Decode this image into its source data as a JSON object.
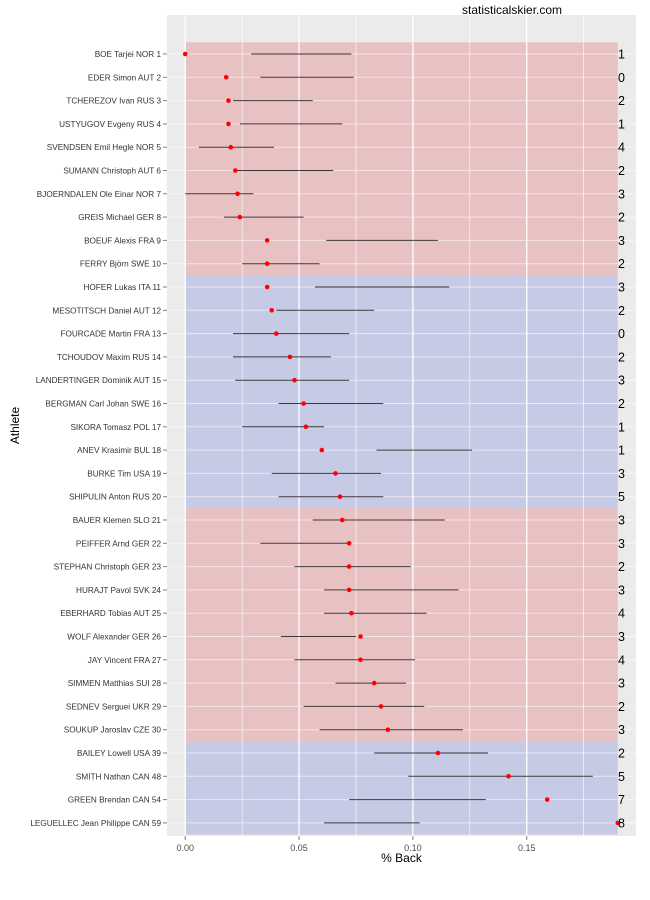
{
  "watermark": "statisticalskier.com",
  "chart_data": {
    "type": "scatter",
    "title": "",
    "xlabel": "% Back",
    "ylabel": "Athlete",
    "xlim": [
      -0.008,
      0.198
    ],
    "xticks": [
      0.0,
      0.05,
      0.1,
      0.15
    ],
    "xtick_labels": [
      "0.00",
      "0.05",
      "0.10",
      "0.15"
    ],
    "grid": true,
    "colors": {
      "panel": "#ebebeb",
      "grid": "#ffffff",
      "point": "#ff0000",
      "range_line": "#000000",
      "band_red": "#e8bcbf",
      "band_blue": "#c3c6e3"
    },
    "bands": [
      {
        "from_rank": 1,
        "to_rank": 10,
        "color": "red",
        "xmin": 0.0,
        "xmax": 0.19
      },
      {
        "from_rank": 11,
        "to_rank": 20,
        "color": "blue",
        "xmin": 0.0,
        "xmax": 0.19
      },
      {
        "from_rank": 21,
        "to_rank": 30,
        "color": "red",
        "xmin": 0.0,
        "xmax": 0.19
      },
      {
        "from_rank": 31,
        "to_rank": 34,
        "color": "blue",
        "xmin": 0.0,
        "xmax": 0.19
      }
    ],
    "athletes": [
      {
        "label": "BOE Tarjei NOR 1",
        "value": 0.0,
        "lo": 0.029,
        "hi": 0.073,
        "count": "1"
      },
      {
        "label": "EDER Simon AUT 2",
        "value": 0.018,
        "lo": 0.033,
        "hi": 0.074,
        "count": "0"
      },
      {
        "label": "TCHEREZOV Ivan RUS 3",
        "value": 0.019,
        "lo": 0.021,
        "hi": 0.056,
        "count": "2"
      },
      {
        "label": "USTYUGOV Evgeny RUS 4",
        "value": 0.019,
        "lo": 0.024,
        "hi": 0.069,
        "count": "1"
      },
      {
        "label": "SVENDSEN Emil Hegle NOR 5",
        "value": 0.02,
        "lo": 0.006,
        "hi": 0.039,
        "count": "4"
      },
      {
        "label": "SUMANN Christoph AUT 6",
        "value": 0.022,
        "lo": 0.022,
        "hi": 0.065,
        "count": "2"
      },
      {
        "label": "BJOERNDALEN Ole Einar NOR 7",
        "value": 0.023,
        "lo": 0.0,
        "hi": 0.03,
        "count": "3"
      },
      {
        "label": "GREIS Michael GER 8",
        "value": 0.024,
        "lo": 0.017,
        "hi": 0.052,
        "count": "2"
      },
      {
        "label": "BOEUF Alexis FRA 9",
        "value": 0.036,
        "lo": 0.062,
        "hi": 0.111,
        "count": "3"
      },
      {
        "label": "FERRY Björn SWE 10",
        "value": 0.036,
        "lo": 0.025,
        "hi": 0.059,
        "count": "2"
      },
      {
        "label": "HOFER Lukas ITA 11",
        "value": 0.036,
        "lo": 0.057,
        "hi": 0.116,
        "count": "3"
      },
      {
        "label": "MESOTITSCH Daniel AUT 12",
        "value": 0.038,
        "lo": 0.04,
        "hi": 0.083,
        "count": "2"
      },
      {
        "label": "FOURCADE Martin FRA 13",
        "value": 0.04,
        "lo": 0.021,
        "hi": 0.072,
        "count": "0"
      },
      {
        "label": "TCHOUDOV Maxim RUS 14",
        "value": 0.046,
        "lo": 0.021,
        "hi": 0.064,
        "count": "2"
      },
      {
        "label": "LANDERTINGER Dominik AUT 15",
        "value": 0.048,
        "lo": 0.022,
        "hi": 0.072,
        "count": "3"
      },
      {
        "label": "BERGMAN Carl Johan SWE 16",
        "value": 0.052,
        "lo": 0.041,
        "hi": 0.087,
        "count": "2"
      },
      {
        "label": "SIKORA Tomasz POL 17",
        "value": 0.053,
        "lo": 0.025,
        "hi": 0.061,
        "count": "1"
      },
      {
        "label": "ANEV Krasimir BUL 18",
        "value": 0.06,
        "lo": 0.084,
        "hi": 0.126,
        "count": "1"
      },
      {
        "label": "BURKE Tim USA 19",
        "value": 0.066,
        "lo": 0.038,
        "hi": 0.086,
        "count": "3"
      },
      {
        "label": "SHIPULIN Anton RUS 20",
        "value": 0.068,
        "lo": 0.041,
        "hi": 0.087,
        "count": "5"
      },
      {
        "label": "BAUER Klemen SLO 21",
        "value": 0.069,
        "lo": 0.056,
        "hi": 0.114,
        "count": "3"
      },
      {
        "label": "PEIFFER Arnd GER 22",
        "value": 0.072,
        "lo": 0.033,
        "hi": 0.073,
        "count": "3"
      },
      {
        "label": "STEPHAN Christoph GER 23",
        "value": 0.072,
        "lo": 0.048,
        "hi": 0.099,
        "count": "2"
      },
      {
        "label": "HURAJT Pavol SVK 24",
        "value": 0.072,
        "lo": 0.061,
        "hi": 0.12,
        "count": "3"
      },
      {
        "label": "EBERHARD Tobias AUT 25",
        "value": 0.073,
        "lo": 0.061,
        "hi": 0.106,
        "count": "4"
      },
      {
        "label": "WOLF Alexander GER 26",
        "value": 0.077,
        "lo": 0.042,
        "hi": 0.075,
        "count": "3"
      },
      {
        "label": "JAY Vincent FRA 27",
        "value": 0.077,
        "lo": 0.048,
        "hi": 0.101,
        "count": "4"
      },
      {
        "label": "SIMMEN Matthias SUI 28",
        "value": 0.083,
        "lo": 0.066,
        "hi": 0.097,
        "count": "3"
      },
      {
        "label": "SEDNEV Serguei UKR 29",
        "value": 0.086,
        "lo": 0.052,
        "hi": 0.105,
        "count": "2"
      },
      {
        "label": "SOUKUP Jaroslav CZE 30",
        "value": 0.089,
        "lo": 0.059,
        "hi": 0.122,
        "count": "3"
      },
      {
        "label": "BAILEY Lowell USA 39",
        "value": 0.111,
        "lo": 0.083,
        "hi": 0.133,
        "count": "2"
      },
      {
        "label": "SMITH Nathan CAN 48",
        "value": 0.142,
        "lo": 0.098,
        "hi": 0.179,
        "count": "5"
      },
      {
        "label": "GREEN Brendan CAN 54",
        "value": 0.159,
        "lo": 0.072,
        "hi": 0.132,
        "count": "7"
      },
      {
        "label": "LEGUELLEC Jean Philippe CAN 59",
        "value": 0.19,
        "lo": 0.061,
        "hi": 0.103,
        "count": "8"
      }
    ]
  }
}
